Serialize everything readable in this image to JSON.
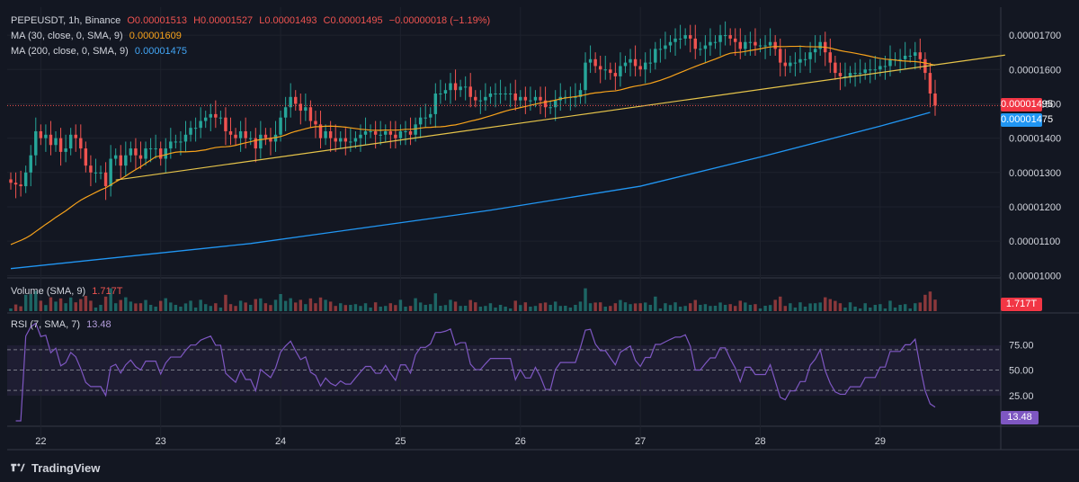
{
  "header": {
    "symbol": "PEPEUSDT, 1h, Binance",
    "open": "O0.00001513",
    "high": "H0.00001527",
    "low": "L0.00001493",
    "close": "C0.00001495",
    "change": "−0.00000018 (−1.19%)"
  },
  "indicators": {
    "ma30_label": "MA (30, close, 0, SMA, 9)",
    "ma30_value": "0.00001609",
    "ma200_label": "MA (200, close, 0, SMA, 9)",
    "ma200_value": "0.00001475",
    "volume_label": "Volume (SMA, 9)",
    "volume_value": "1.717T",
    "rsi_label": "RSI (7, SMA, 7)",
    "rsi_value": "13.48"
  },
  "price_tags": {
    "last_price": "0.00001495",
    "ma200": "0.00001475",
    "volume": "1.717T",
    "rsi": "13.48"
  },
  "brand": {
    "name": "TradingView"
  },
  "colors": {
    "background": "#131722",
    "up": "#26a69a",
    "down": "#ef5350",
    "ma30": "#f7a21b",
    "ma200": "#2196f3",
    "trendline": "#e6c44a",
    "rsi": "#7e57c2"
  },
  "chart_data": {
    "type": "candlestick",
    "price_axis": {
      "ticks": [
        "0.00001700",
        "0.00001600",
        "0.00001500",
        "0.00001400",
        "0.00001300",
        "0.00001200",
        "0.00001100",
        "0.00001000"
      ],
      "tick_values": [
        1.7e-05,
        1.6e-05,
        1.5e-05,
        1.4e-05,
        1.3e-05,
        1.2e-05,
        1.1e-05,
        1e-05
      ],
      "ylim": [
        9.93e-06,
        1.75e-05
      ]
    },
    "x_axis": {
      "labels": [
        "22",
        "23",
        "24",
        "25",
        "26",
        "27",
        "28",
        "29"
      ],
      "label_index": [
        6,
        30,
        54,
        78,
        102,
        126,
        150,
        174
      ]
    },
    "ma200_points": [
      [
        0,
        1.02e-05
      ],
      [
        48,
        1.093e-05
      ],
      [
        96,
        1.19e-05
      ],
      [
        126,
        1.26e-05
      ],
      [
        150,
        1.345e-05
      ],
      [
        174,
        1.435e-05
      ],
      [
        184,
        1.475e-05
      ]
    ],
    "trendline_points": [
      [
        21,
        1.278e-05
      ],
      [
        199,
        1.642e-05
      ]
    ],
    "close": [
      1.27e-05,
      1.265e-05,
      1.26e-05,
      1.3e-05,
      1.35e-05,
      1.42e-05,
      1.4e-05,
      1.41e-05,
      1.38e-05,
      1.4e-05,
      1.36e-05,
      1.37e-05,
      1.41e-05,
      1.4e-05,
      1.37e-05,
      1.32e-05,
      1.3e-05,
      1.3e-05,
      1.3e-05,
      1.26e-05,
      1.34e-05,
      1.35e-05,
      1.32e-05,
      1.35e-05,
      1.37e-05,
      1.35e-05,
      1.34e-05,
      1.37e-05,
      1.37e-05,
      1.37e-05,
      1.34e-05,
      1.37e-05,
      1.39e-05,
      1.39e-05,
      1.39e-05,
      1.41e-05,
      1.43e-05,
      1.43e-05,
      1.45e-05,
      1.46e-05,
      1.47e-05,
      1.46e-05,
      1.46e-05,
      1.42e-05,
      1.41e-05,
      1.4e-05,
      1.42e-05,
      1.4e-05,
      1.4e-05,
      1.37e-05,
      1.41e-05,
      1.4e-05,
      1.39e-05,
      1.41e-05,
      1.46e-05,
      1.49e-05,
      1.52e-05,
      1.5e-05,
      1.48e-05,
      1.49e-05,
      1.45e-05,
      1.44e-05,
      1.4e-05,
      1.42e-05,
      1.4e-05,
      1.39e-05,
      1.4e-05,
      1.39e-05,
      1.39e-05,
      1.4e-05,
      1.41e-05,
      1.42e-05,
      1.42e-05,
      1.41e-05,
      1.41e-05,
      1.42e-05,
      1.41e-05,
      1.4e-05,
      1.42e-05,
      1.42e-05,
      1.41e-05,
      1.44e-05,
      1.46e-05,
      1.46e-05,
      1.47e-05,
      1.53e-05,
      1.53e-05,
      1.54e-05,
      1.56e-05,
      1.54e-05,
      1.55e-05,
      1.55e-05,
      1.52e-05,
      1.51e-05,
      1.51e-05,
      1.52e-05,
      1.53e-05,
      1.53e-05,
      1.53e-05,
      1.53e-05,
      1.53e-05,
      1.51e-05,
      1.52e-05,
      1.51e-05,
      1.51e-05,
      1.52e-05,
      1.51e-05,
      1.49e-05,
      1.49e-05,
      1.51e-05,
      1.52e-05,
      1.52e-05,
      1.52e-05,
      1.52e-05,
      1.54e-05,
      1.62e-05,
      1.63e-05,
      1.61e-05,
      1.6e-05,
      1.6e-05,
      1.59e-05,
      1.58e-05,
      1.61e-05,
      1.62e-05,
      1.63e-05,
      1.61e-05,
      1.6e-05,
      1.62e-05,
      1.62e-05,
      1.66e-05,
      1.66e-05,
      1.67e-05,
      1.68e-05,
      1.69e-05,
      1.69e-05,
      1.7e-05,
      1.69e-05,
      1.66e-05,
      1.66e-05,
      1.67e-05,
      1.68e-05,
      1.68e-05,
      1.7e-05,
      1.7e-05,
      1.69e-05,
      1.68e-05,
      1.66e-05,
      1.68e-05,
      1.68e-05,
      1.67e-05,
      1.67e-05,
      1.67e-05,
      1.68e-05,
      1.66e-05,
      1.62e-05,
      1.61e-05,
      1.62e-05,
      1.62e-05,
      1.63e-05,
      1.63e-05,
      1.65e-05,
      1.66e-05,
      1.68e-05,
      1.65e-05,
      1.62e-05,
      1.59e-05,
      1.58e-05,
      1.58e-05,
      1.59e-05,
      1.59e-05,
      1.59e-05,
      1.6e-05,
      1.6e-05,
      1.6e-05,
      1.61e-05,
      1.61e-05,
      1.63e-05,
      1.63e-05,
      1.63e-05,
      1.64e-05,
      1.64e-05,
      1.65e-05,
      1.63e-05,
      1.59e-05,
      1.53e-05,
      1.495e-05
    ],
    "volume_scale": "relative",
    "rsi_axis": {
      "ticks": [
        "75.00",
        "50.00",
        "25.00"
      ],
      "tick_values": [
        75,
        50,
        25
      ],
      "ylim": [
        0,
        100
      ]
    },
    "rsi_levels": [
      70,
      50,
      30
    ]
  }
}
